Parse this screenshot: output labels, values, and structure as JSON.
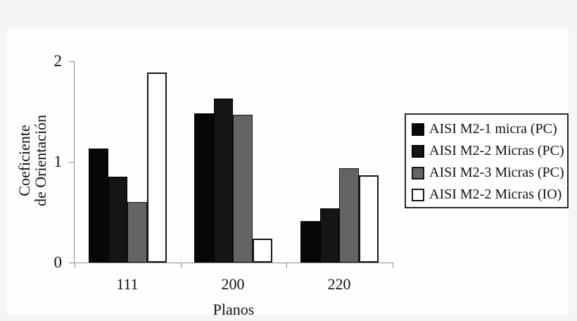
{
  "chart_data": {
    "type": "bar",
    "title": "",
    "xlabel": "Planos",
    "ylabel": "Coeficiente de Orientación",
    "ylabel_lines": [
      "Coeficiente",
      "de Orientación"
    ],
    "categories": [
      "111",
      "200",
      "220"
    ],
    "series": [
      {
        "name": "AISI M2-1 micra (PC)",
        "fill": "#070707",
        "border": "#070707",
        "values": [
          1.13,
          1.48,
          0.41
        ]
      },
      {
        "name": "AISI M2-2 Micras (PC)",
        "fill": "#151515",
        "border": "#000000",
        "values": [
          0.85,
          1.63,
          0.54
        ]
      },
      {
        "name": "AISI M2-3 Micras (PC)",
        "fill": "#646464",
        "border": "#161616",
        "values": [
          0.6,
          1.47,
          0.94
        ]
      },
      {
        "name": "AISI M2-2 Micras (IO)",
        "fill": "#ffffff",
        "border": "#161616",
        "values": [
          1.89,
          0.24,
          0.87
        ]
      }
    ],
    "ylim": [
      0,
      2
    ],
    "yticks": [
      0,
      1,
      2
    ],
    "grid": false,
    "legend_position": "right"
  },
  "colors": {
    "page_bg": "#f5f5f6",
    "panel_bg": "#fefefe",
    "axis": "#8f8f8f",
    "text": "#111111",
    "legend_border": "#2a2a2a",
    "legend_bg": "#ffffff"
  }
}
